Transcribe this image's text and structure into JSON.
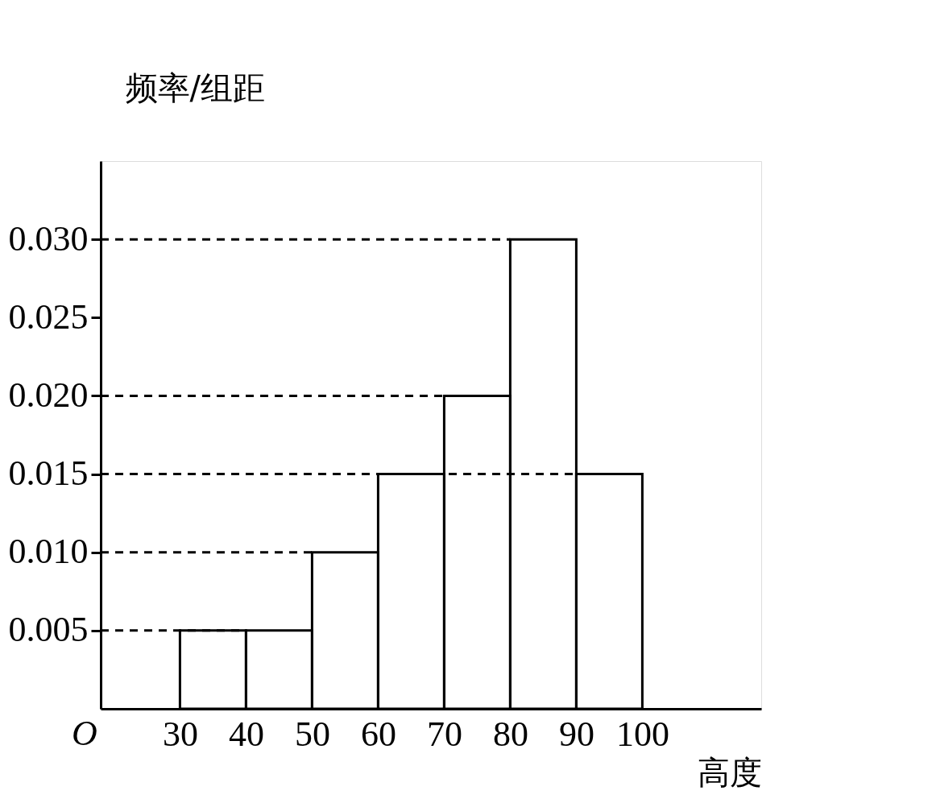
{
  "chart_data": {
    "type": "histogram",
    "xlabel": "高度",
    "ylabel": "频率/组距",
    "bins": [
      30,
      40,
      50,
      60,
      70,
      80,
      90,
      100
    ],
    "values": [
      0.005,
      0.005,
      0.01,
      0.015,
      0.02,
      0.03,
      0.015
    ],
    "xlim": [
      18,
      118
    ],
    "ylim": [
      0,
      0.035
    ],
    "xticks": [
      30,
      40,
      50,
      60,
      70,
      80,
      90,
      100
    ],
    "yticks": [
      {
        "value": 0.005,
        "label": "0.005"
      },
      {
        "value": 0.01,
        "label": "0.010"
      },
      {
        "value": 0.015,
        "label": "0.015"
      },
      {
        "value": 0.02,
        "label": "0.020"
      },
      {
        "value": 0.025,
        "label": "0.025"
      },
      {
        "value": 0.03,
        "label": "0.030"
      }
    ],
    "ref_lines": [
      {
        "axis": "y",
        "value": 0.005,
        "line_style": "dashed"
      },
      {
        "axis": "y",
        "value": 0.01,
        "line_style": "dashed"
      },
      {
        "axis": "y",
        "value": 0.015,
        "line_style": "dashed"
      },
      {
        "axis": "y",
        "value": 0.02,
        "line_style": "dashed"
      },
      {
        "axis": "y",
        "value": 0.03,
        "line_style": "dashed"
      }
    ],
    "annotations": [
      "O"
    ],
    "grid": false
  }
}
